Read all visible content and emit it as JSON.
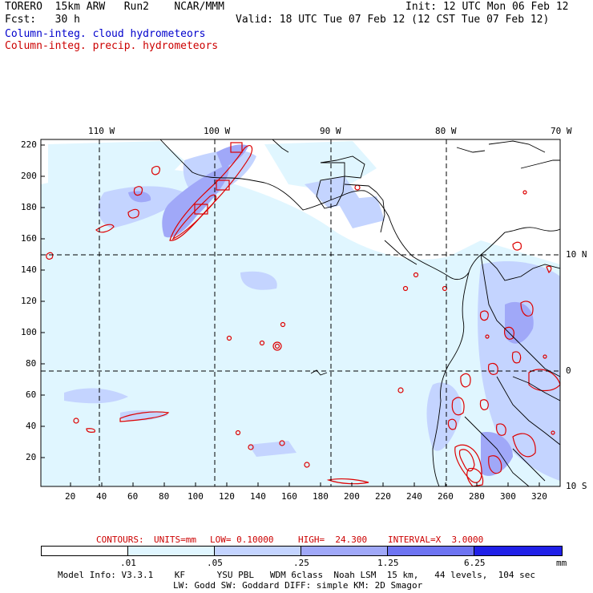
{
  "header": {
    "model": "TORERO  15km ARW   Run2    NCAR/MMM",
    "forecast": "Fcst:   30 h",
    "init": "Init: 12 UTC Mon 06 Feb 12",
    "valid": "Valid: 18 UTC Tue 07 Feb 12 (12 CST Tue 07 Feb 12)"
  },
  "legend": {
    "cloud": "Column-integ. cloud hydrometeors",
    "precip": "Column-integ. precip. hydrometeors",
    "cloud_color": "#0000cc",
    "precip_color": "#cc0000"
  },
  "map": {
    "top_lon_labels": [
      "110 W",
      "100 W",
      "90 W",
      "80 W",
      "70 W"
    ],
    "right_lat_labels": [
      "10 N",
      "0",
      "10 S"
    ],
    "y_ticks": [
      "220",
      "200",
      "180",
      "160",
      "140",
      "120",
      "100",
      "80",
      "60",
      "40",
      "20"
    ],
    "x_ticks": [
      "20",
      "40",
      "60",
      "80",
      "100",
      "120",
      "140",
      "160",
      "180",
      "200",
      "220",
      "240",
      "260",
      "280",
      "300",
      "320"
    ]
  },
  "contours": {
    "label": "CONTOURS:",
    "units": "UNITS=mm",
    "low": "LOW= 0.10000",
    "high": "HIGH=  24.300",
    "interval": "INTERVAL=X  3.0000"
  },
  "colorbar": {
    "labels": [
      ".01",
      ".05",
      ".25",
      "1.25",
      "6.25"
    ],
    "unit": "mm",
    "colors": [
      "#ffffff",
      "#e0f6ff",
      "#c4d4ff",
      "#a0a8f8",
      "#6e74f2",
      "#2020e8"
    ]
  },
  "footer": {
    "line1": "Model Info: V3.3.1    KF      YSU PBL   WDM 6class  Noah LSM  15 km,   44 levels,  104 sec",
    "line2": "LW: Godd SW: Goddard DIFF: simple KM: 2D Smagor"
  }
}
